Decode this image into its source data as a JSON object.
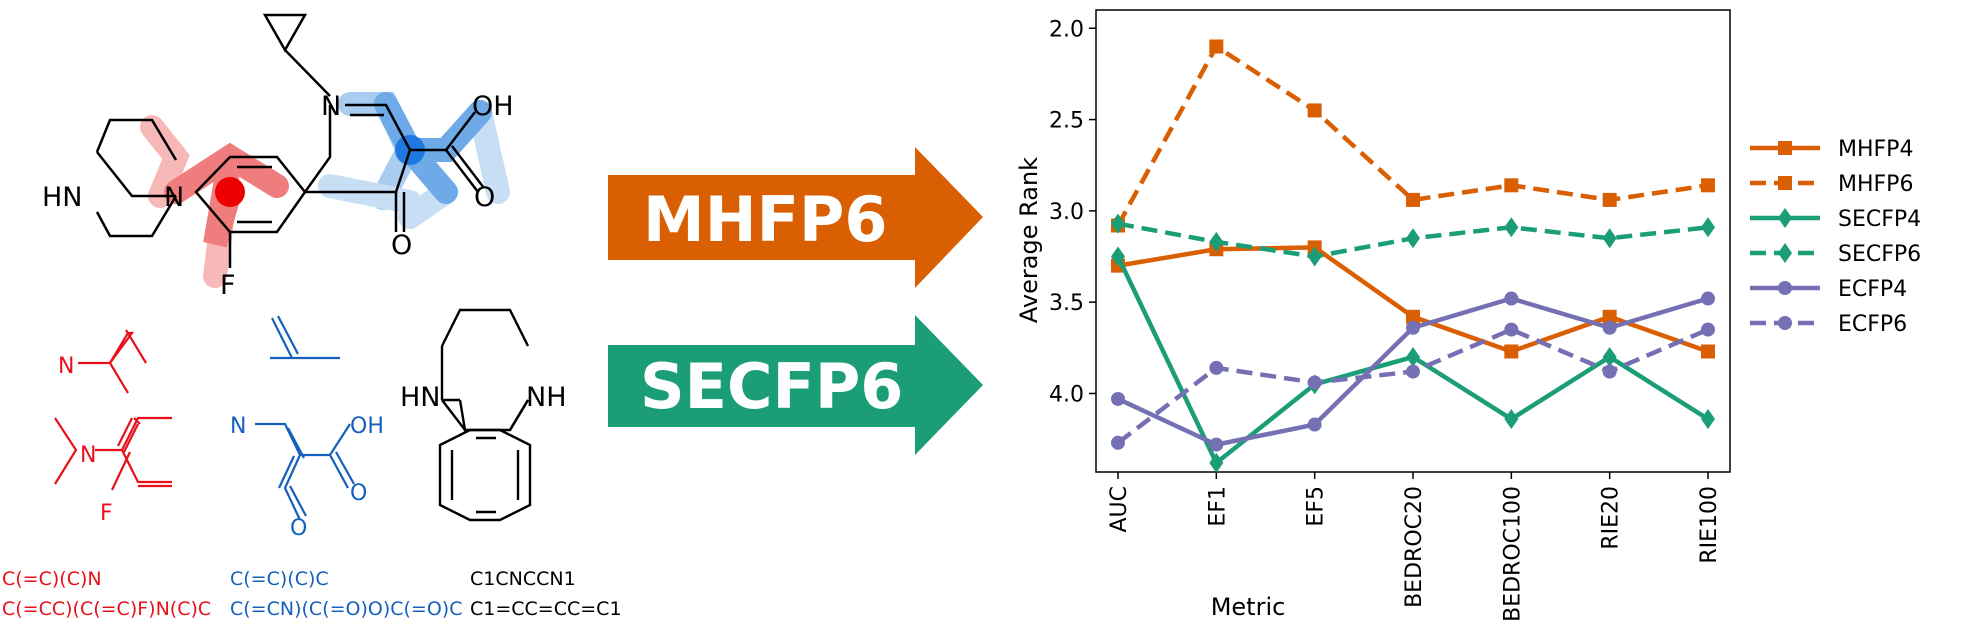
{
  "molecule": {
    "atoms": {
      "nh": "HN",
      "n_pip": "N",
      "n_ring": "N",
      "oh": "OH",
      "o_acid": "O",
      "o_keto": "O",
      "f": "F"
    }
  },
  "fragments": {
    "red": {
      "n": "N",
      "n2": "N",
      "f": "F",
      "color": "#e8101a"
    },
    "blue": {
      "n": "N",
      "oh": "OH",
      "o1": "O",
      "o2": "O",
      "color": "#1560bd"
    },
    "black": {
      "hn": "HN",
      "nh": "NH"
    }
  },
  "smiles": {
    "red": [
      "C(=C)(C)N",
      "C(=CC)(C(=C)F)N(C)C"
    ],
    "blue": [
      "C(=C)(C)C",
      "C(=CN)(C(=O)O)C(=O)C"
    ],
    "black": [
      "C1CNCCN1",
      "C1=CC=CC=C1"
    ]
  },
  "arrows": [
    {
      "label": "MHFP6",
      "color": "#d95f02"
    },
    {
      "label": "SECFP6",
      "color": "#1b9e77"
    }
  ],
  "chart_data": {
    "type": "line",
    "categories": [
      "AUC",
      "EF1",
      "EF5",
      "BEDROC20",
      "BEDROC100",
      "RIE20",
      "RIE100"
    ],
    "xlabel": "Metric",
    "ylabel": "Average Rank",
    "ylim": [
      4.43,
      1.9
    ],
    "y_inverted": true,
    "yticks": [
      "2.0",
      "2.5",
      "3.0",
      "3.5",
      "4.0"
    ],
    "grid": false,
    "legend": "outside-right",
    "series": [
      {
        "name": "MHFP4",
        "color": "#d95f02",
        "dash": false,
        "marker": "square",
        "values": [
          3.3,
          3.21,
          3.2,
          3.58,
          3.77,
          3.58,
          3.77
        ]
      },
      {
        "name": "MHFP6",
        "color": "#d95f02",
        "dash": true,
        "marker": "square",
        "values": [
          3.08,
          2.1,
          2.45,
          2.94,
          2.86,
          2.94,
          2.86
        ]
      },
      {
        "name": "SECFP4",
        "color": "#1b9e77",
        "dash": false,
        "marker": "diamond",
        "values": [
          3.25,
          4.38,
          3.95,
          3.8,
          4.14,
          3.8,
          4.14
        ]
      },
      {
        "name": "SECFP6",
        "color": "#1b9e77",
        "dash": true,
        "marker": "diamond",
        "values": [
          3.07,
          3.17,
          3.25,
          3.15,
          3.09,
          3.15,
          3.09
        ]
      },
      {
        "name": "ECFP4",
        "color": "#7570b3",
        "dash": false,
        "marker": "circle",
        "values": [
          4.03,
          4.28,
          4.17,
          3.64,
          3.48,
          3.64,
          3.48
        ]
      },
      {
        "name": "ECFP6",
        "color": "#7570b3",
        "dash": true,
        "marker": "circle",
        "values": [
          4.27,
          3.86,
          3.94,
          3.88,
          3.65,
          3.88,
          3.65
        ]
      }
    ]
  }
}
